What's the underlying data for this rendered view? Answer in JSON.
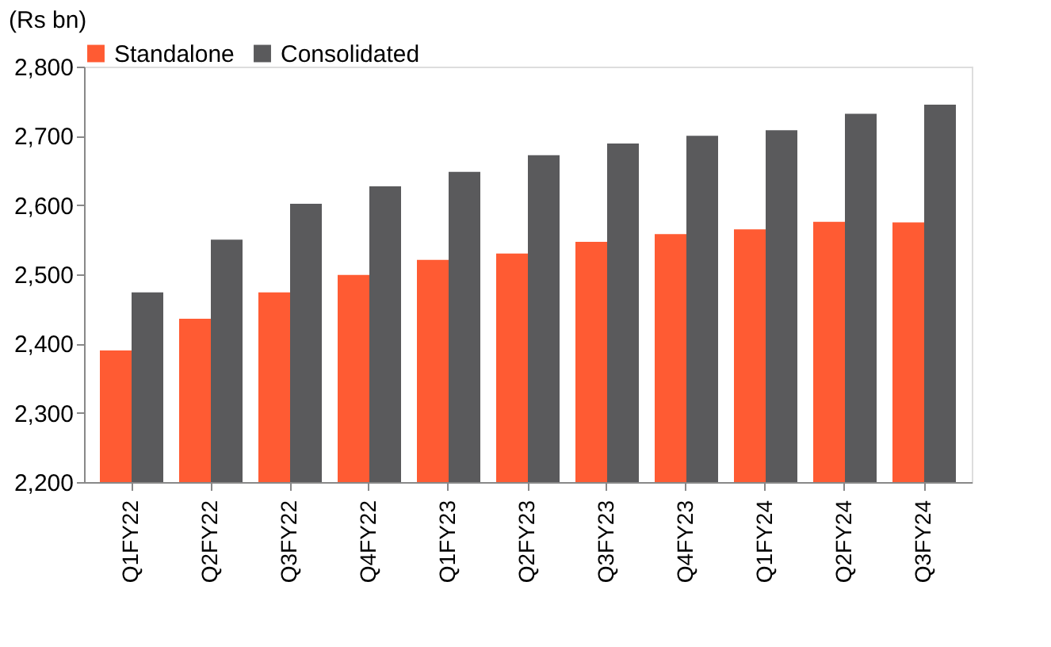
{
  "chart_data": {
    "type": "bar",
    "ylabel": "(Rs bn)",
    "categories": [
      "Q1FY22",
      "Q2FY22",
      "Q3FY22",
      "Q4FY22",
      "Q1FY23",
      "Q2FY23",
      "Q3FY23",
      "Q4FY23",
      "Q1FY24",
      "Q2FY24",
      "Q3FY24"
    ],
    "series": [
      {
        "name": "Standalone",
        "color": "#ff5b33",
        "values": [
          2390,
          2436,
          2474,
          2499,
          2521,
          2530,
          2547,
          2558,
          2565,
          2576,
          2575
        ]
      },
      {
        "name": "Consolidated",
        "color": "#5a5a5c",
        "values": [
          2474,
          2550,
          2602,
          2627,
          2648,
          2672,
          2689,
          2700,
          2708,
          2732,
          2745
        ]
      }
    ],
    "ylim": [
      2200,
      2800
    ],
    "yticks": [
      {
        "value": 2200,
        "label": "2,200"
      },
      {
        "value": 2300,
        "label": "2,300"
      },
      {
        "value": 2400,
        "label": "2,400"
      },
      {
        "value": 2500,
        "label": "2,500"
      },
      {
        "value": 2600,
        "label": "2,600"
      },
      {
        "value": 2700,
        "label": "2,700"
      },
      {
        "value": 2800,
        "label": "2,800"
      }
    ],
    "grid": false,
    "legend": "top"
  }
}
